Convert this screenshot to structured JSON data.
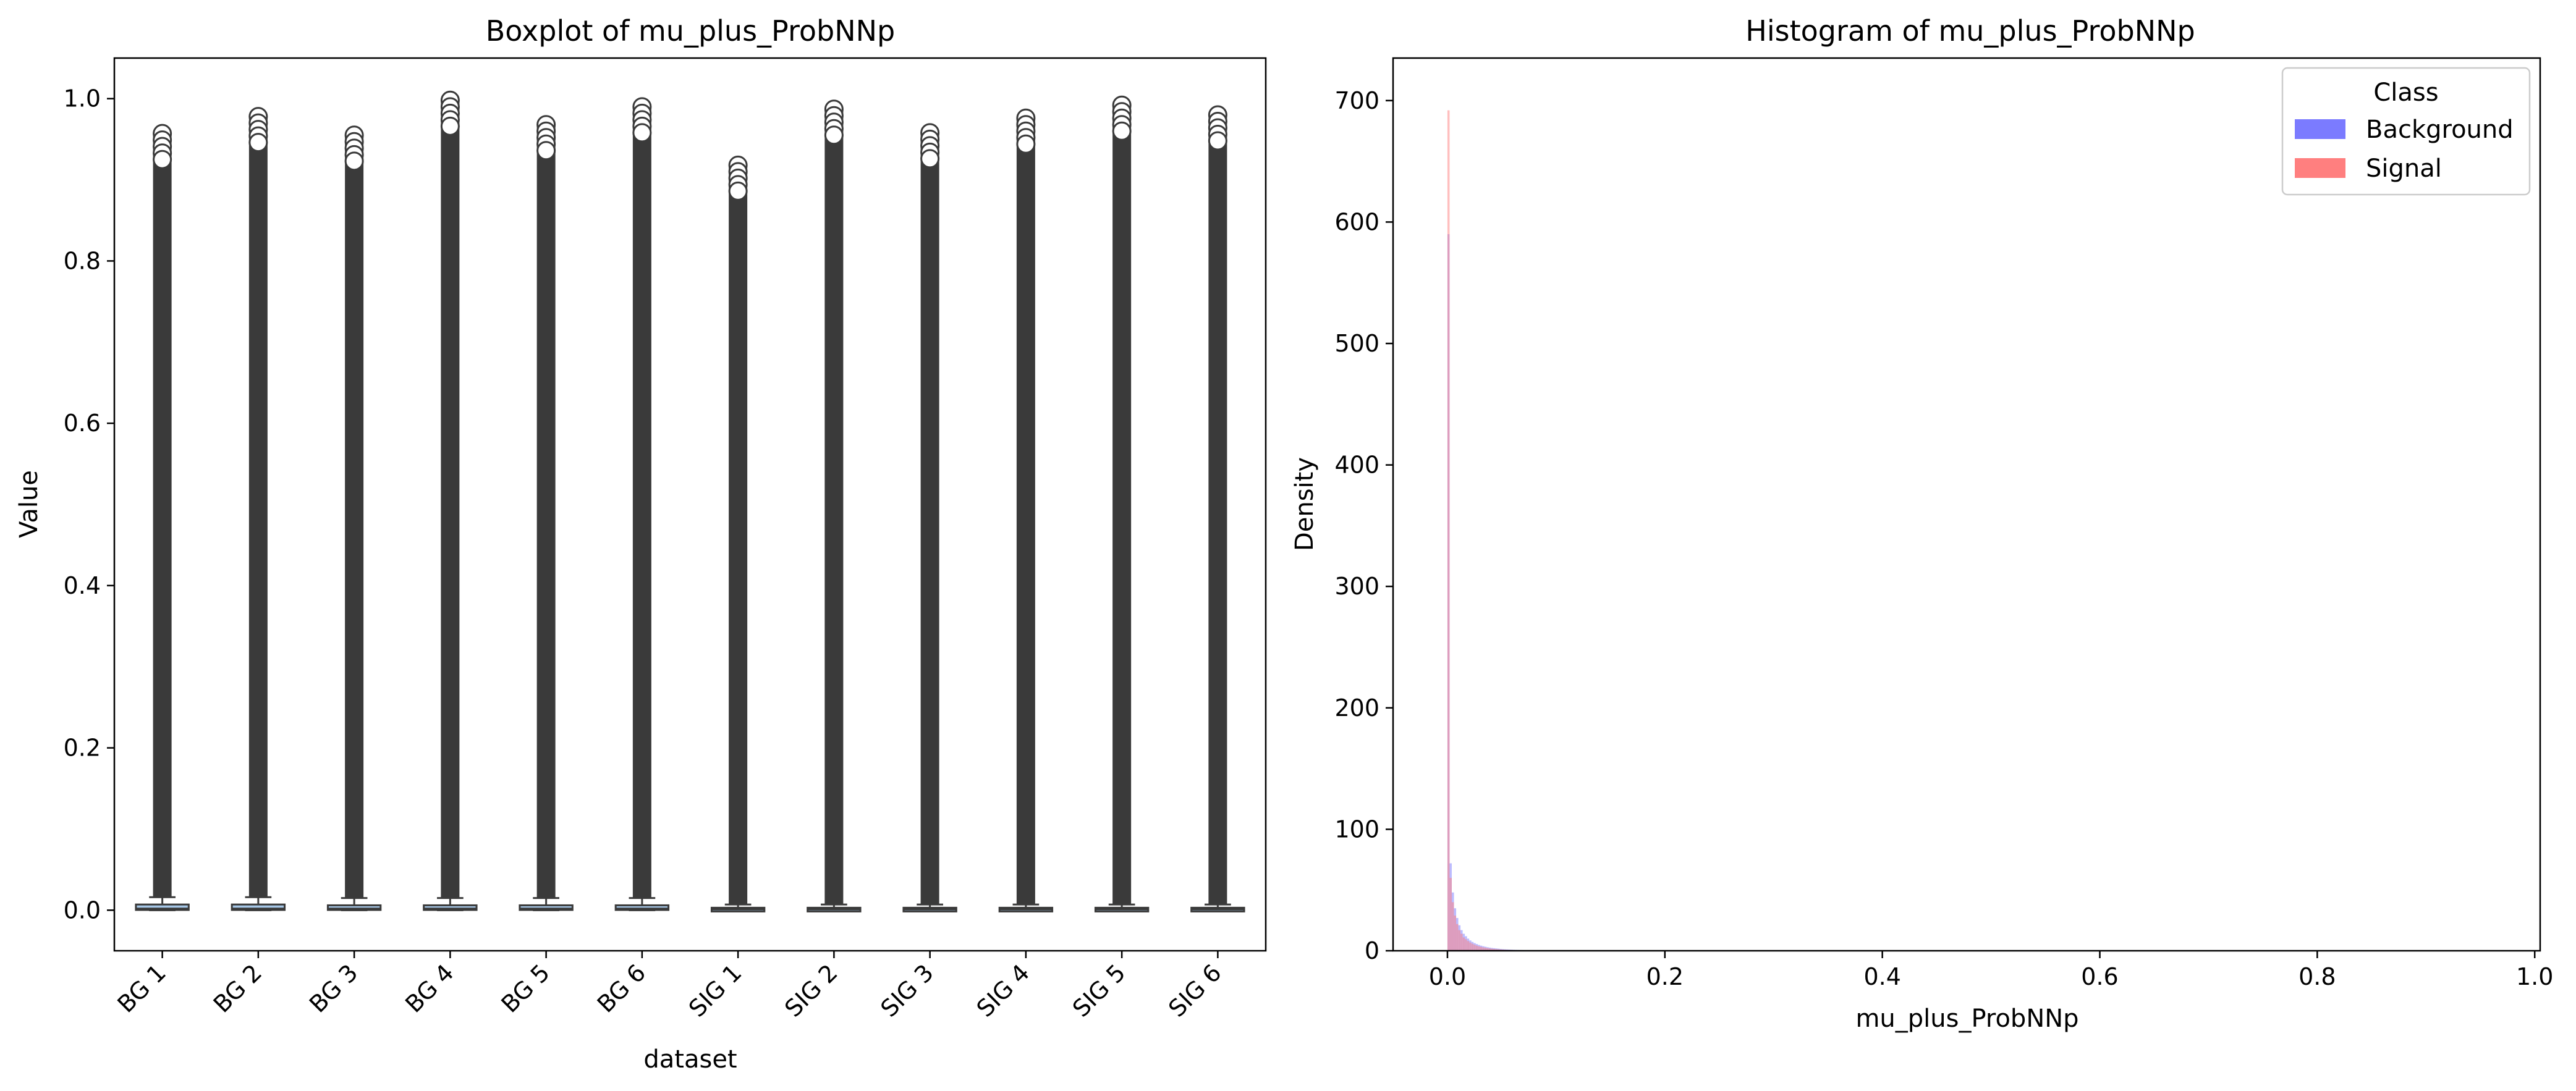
{
  "colors": {
    "box_fill": "#a7c8e8",
    "box_edge": "#3a3a3a",
    "outlier": "#3a3a3a",
    "background_series": "#7b7bff",
    "signal_series": "#ff7f7f",
    "overlap": "#8b1e6e",
    "axis": "#000000"
  },
  "chart_data": [
    {
      "type": "box",
      "title": "Boxplot of mu_plus_ProbNNp",
      "xlabel": "dataset",
      "ylabel": "Value",
      "ylim": [
        -0.05,
        1.05
      ],
      "yticks": [
        0.0,
        0.2,
        0.4,
        0.6,
        0.8,
        1.0
      ],
      "ytick_labels": [
        "0.0",
        "0.2",
        "0.4",
        "0.6",
        "0.8",
        "1.0"
      ],
      "categories": [
        "BG 1",
        "BG 2",
        "BG 3",
        "BG 4",
        "BG 5",
        "BG 6",
        "SIG 1",
        "SIG 2",
        "SIG 3",
        "SIG 4",
        "SIG 5",
        "SIG 6"
      ],
      "boxes": [
        {
          "q1": 0.0003,
          "median": 0.002,
          "q3": 0.007,
          "whisker_low": 0.0,
          "whisker_high": 0.016,
          "max": 0.957
        },
        {
          "q1": 0.0003,
          "median": 0.002,
          "q3": 0.007,
          "whisker_low": 0.0,
          "whisker_high": 0.016,
          "max": 0.978
        },
        {
          "q1": 0.0003,
          "median": 0.002,
          "q3": 0.006,
          "whisker_low": 0.0,
          "whisker_high": 0.015,
          "max": 0.955
        },
        {
          "q1": 0.0003,
          "median": 0.002,
          "q3": 0.006,
          "whisker_low": 0.0,
          "whisker_high": 0.015,
          "max": 0.998
        },
        {
          "q1": 0.0003,
          "median": 0.002,
          "q3": 0.006,
          "whisker_low": 0.0,
          "whisker_high": 0.015,
          "max": 0.968
        },
        {
          "q1": 0.0003,
          "median": 0.002,
          "q3": 0.006,
          "whisker_low": 0.0,
          "whisker_high": 0.015,
          "max": 0.99
        },
        {
          "q1": 0.0002,
          "median": 0.001,
          "q3": 0.003,
          "whisker_low": 0.0,
          "whisker_high": 0.007,
          "max": 0.918
        },
        {
          "q1": 0.0002,
          "median": 0.001,
          "q3": 0.003,
          "whisker_low": 0.0,
          "whisker_high": 0.007,
          "max": 0.987
        },
        {
          "q1": 0.0002,
          "median": 0.001,
          "q3": 0.003,
          "whisker_low": 0.0,
          "whisker_high": 0.007,
          "max": 0.958
        },
        {
          "q1": 0.0002,
          "median": 0.001,
          "q3": 0.003,
          "whisker_low": 0.0,
          "whisker_high": 0.007,
          "max": 0.976
        },
        {
          "q1": 0.0002,
          "median": 0.001,
          "q3": 0.003,
          "whisker_low": 0.0,
          "whisker_high": 0.007,
          "max": 0.992
        },
        {
          "q1": 0.0002,
          "median": 0.001,
          "q3": 0.003,
          "whisker_low": 0.0,
          "whisker_high": 0.007,
          "max": 0.98
        }
      ]
    },
    {
      "type": "histogram",
      "title": "Histogram of mu_plus_ProbNNp",
      "xlabel": "mu_plus_ProbNNp",
      "ylabel": "Density",
      "xlim": [
        -0.05,
        1.005
      ],
      "ylim": [
        0,
        735
      ],
      "xticks": [
        0.0,
        0.2,
        0.4,
        0.6,
        0.8,
        1.0
      ],
      "xtick_labels": [
        "0.0",
        "0.2",
        "0.4",
        "0.6",
        "0.8",
        "1.0"
      ],
      "yticks": [
        0,
        100,
        200,
        300,
        400,
        500,
        600,
        700
      ],
      "ytick_labels": [
        "0",
        "100",
        "200",
        "300",
        "400",
        "500",
        "600",
        "700"
      ],
      "legend": {
        "title": "Class",
        "position": "top-right"
      },
      "bin_width": 0.002,
      "series": [
        {
          "name": "Background",
          "color": "#7b7bff",
          "values": [
            590,
            72,
            48,
            35,
            27,
            21,
            17,
            14,
            12,
            10,
            8.5,
            7.3,
            6.3,
            5.5,
            4.8,
            4.2,
            3.7,
            3.3,
            2.9,
            2.6,
            2.3,
            2.1,
            1.9,
            1.7,
            1.5,
            1.35,
            1.2,
            1.1,
            1.0,
            0.9,
            0.8,
            0.72,
            0.65,
            0.58,
            0.52,
            0.47,
            0.42,
            0.38,
            0.34,
            0.31
          ]
        },
        {
          "name": "Signal",
          "color": "#ff7f7f",
          "values": [
            692,
            60,
            40,
            29,
            22,
            17,
            14,
            11,
            9.5,
            8,
            6.8,
            5.8,
            5.0,
            4.3,
            3.7,
            3.2,
            2.8,
            2.5,
            2.2,
            1.9,
            1.7,
            1.5,
            1.35,
            1.2,
            1.05,
            0.95,
            0.85,
            0.76,
            0.68,
            0.61,
            0.55,
            0.49,
            0.44,
            0.4,
            0.36,
            0.32,
            0.29,
            0.26,
            0.23,
            0.21
          ]
        }
      ]
    }
  ]
}
